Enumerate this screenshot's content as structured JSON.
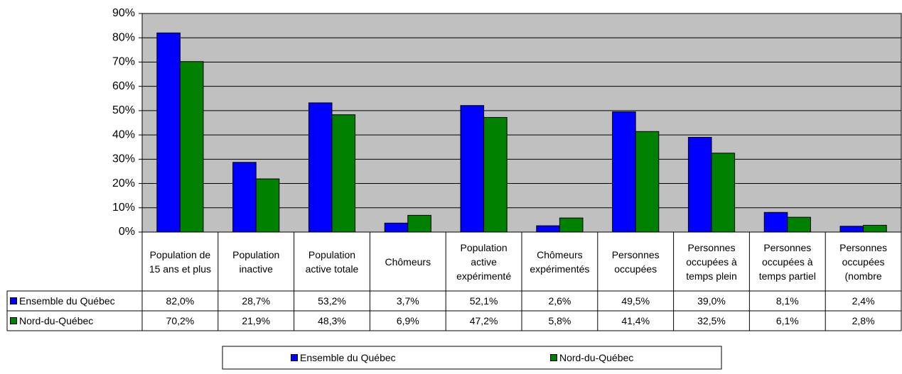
{
  "chart_data": {
    "type": "bar",
    "categories": [
      "Population de 15 ans et plus",
      "Population inactive",
      "Population active totale",
      "Chômeurs",
      "Population active expérimenté",
      "Chômeurs expérimentés",
      "Personnes occupées",
      "Personnes occupées à temps plein",
      "Personnes occupées à temps partiel",
      "Personnes occupées (nombre"
    ],
    "series": [
      {
        "name": "Ensemble du Québec",
        "color": "#0000ff",
        "values": [
          82.0,
          28.7,
          53.2,
          3.7,
          52.1,
          2.6,
          49.5,
          39.0,
          8.1,
          2.4
        ],
        "value_labels": [
          "82,0%",
          "28,7%",
          "53,2%",
          "3,7%",
          "52,1%",
          "2,6%",
          "49,5%",
          "39,0%",
          "8,1%",
          "2,4%"
        ]
      },
      {
        "name": "Nord-du-Québec",
        "color": "#008000",
        "values": [
          70.2,
          21.9,
          48.3,
          6.9,
          47.2,
          5.8,
          41.4,
          32.5,
          6.1,
          2.8
        ],
        "value_labels": [
          "70,2%",
          "21,9%",
          "48,3%",
          "6,9%",
          "47,2%",
          "5,8%",
          "41,4%",
          "32,5%",
          "6,1%",
          "2,8%"
        ]
      }
    ],
    "ylim": [
      0,
      90
    ],
    "yticks": [
      {
        "value": 0,
        "label": "0%"
      },
      {
        "value": 10,
        "label": "10%"
      },
      {
        "value": 20,
        "label": "20%"
      },
      {
        "value": 30,
        "label": "30%"
      },
      {
        "value": 40,
        "label": "40%"
      },
      {
        "value": 50,
        "label": "50%"
      },
      {
        "value": 60,
        "label": "60%"
      },
      {
        "value": 70,
        "label": "70%"
      },
      {
        "value": 80,
        "label": "80%"
      },
      {
        "value": 90,
        "label": "90%"
      }
    ],
    "grid": true,
    "legend": "bottom",
    "plot_background": "#c0c0c0"
  }
}
